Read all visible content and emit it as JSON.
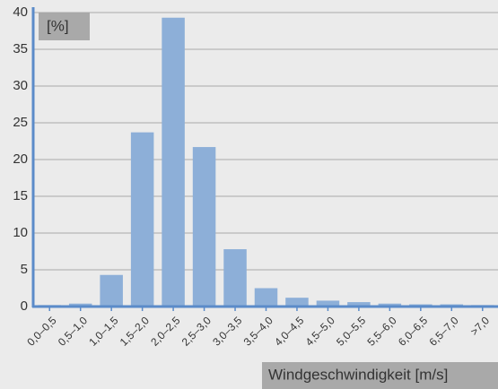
{
  "chart_data": {
    "type": "bar",
    "y_label": "[%]",
    "x_label": "Windgeschwindigkeit [m/s]",
    "categories": [
      "0,0–0,5",
      "0,5–1,0",
      "1,0–1,5",
      "1,5–2,0",
      "2,0–2,5",
      "2,5–3,0",
      "3,0–3,5",
      "3,5–4,0",
      "4,0–4,5",
      "4,5–5,0",
      "5,0–5,5",
      "5,5–6,0",
      "6,0–6,5",
      "6,5–7,0",
      ">7,0"
    ],
    "values": [
      0.2,
      0.4,
      4.3,
      23.7,
      39.3,
      21.7,
      7.8,
      2.5,
      1.2,
      0.8,
      0.6,
      0.4,
      0.3,
      0.3,
      0.2
    ],
    "color": "#8dafd8",
    "ylim": [
      0,
      40
    ],
    "yticks": [
      0,
      5,
      10,
      15,
      20,
      25,
      30,
      35,
      40
    ],
    "grid": true
  }
}
